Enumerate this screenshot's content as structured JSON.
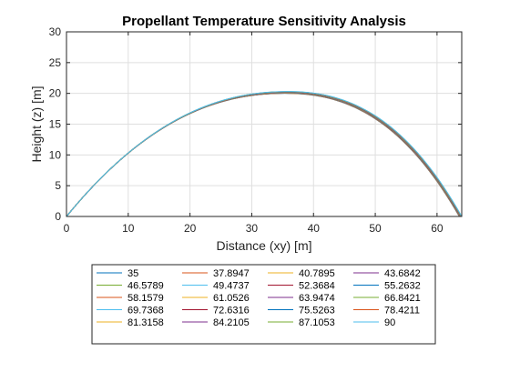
{
  "chart_data": {
    "type": "line",
    "title": "Propellant Temperature Sensitivity Analysis",
    "xlabel": "Distance (xy) [m]",
    "ylabel": "Height (z) [m]",
    "xlim": [
      0,
      64
    ],
    "ylim": [
      0,
      30
    ],
    "xticks": [
      "0",
      "10",
      "20",
      "30",
      "40",
      "50",
      "60"
    ],
    "yticks": [
      "0",
      "5",
      "10",
      "15",
      "20",
      "25",
      "30"
    ],
    "grid": true,
    "legend_position": "bottom-outside",
    "legend_columns": 4,
    "trajectory": {
      "range_min": 63.6,
      "range_max": 64.0,
      "apex_x_min": 35.6,
      "apex_x_max": 36.0,
      "apex_height_min": 20.0,
      "apex_height_max": 20.3,
      "launch_slope": 1.23
    },
    "series": [
      {
        "name": "35",
        "color": "#0072BD"
      },
      {
        "name": "37.8947",
        "color": "#D95319"
      },
      {
        "name": "40.7895",
        "color": "#EDB120"
      },
      {
        "name": "43.6842",
        "color": "#7E2F8E"
      },
      {
        "name": "46.5789",
        "color": "#77AC30"
      },
      {
        "name": "49.4737",
        "color": "#4DBEEE"
      },
      {
        "name": "52.3684",
        "color": "#A2142F"
      },
      {
        "name": "55.2632",
        "color": "#0072BD"
      },
      {
        "name": "58.1579",
        "color": "#D95319"
      },
      {
        "name": "61.0526",
        "color": "#EDB120"
      },
      {
        "name": "63.9474",
        "color": "#7E2F8E"
      },
      {
        "name": "66.8421",
        "color": "#77AC30"
      },
      {
        "name": "69.7368",
        "color": "#4DBEEE"
      },
      {
        "name": "72.6316",
        "color": "#A2142F"
      },
      {
        "name": "75.5263",
        "color": "#0072BD"
      },
      {
        "name": "78.4211",
        "color": "#D95319"
      },
      {
        "name": "81.3158",
        "color": "#EDB120"
      },
      {
        "name": "84.2105",
        "color": "#7E2F8E"
      },
      {
        "name": "87.1053",
        "color": "#77AC30"
      },
      {
        "name": "90",
        "color": "#4DBEEE"
      }
    ]
  }
}
